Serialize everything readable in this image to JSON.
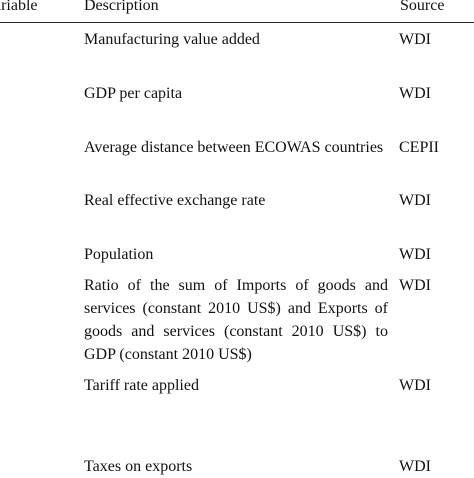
{
  "header": {
    "variable": "ariable",
    "description": "Description",
    "source": "Source"
  },
  "rows": [
    {
      "description": "Manufacturing value added",
      "source": "WDI"
    },
    {
      "description": "GDP per capita",
      "source": "WDI"
    },
    {
      "description": "Average distance between ECOWAS countries",
      "source": "CEPII"
    },
    {
      "description": "Real effective exchange rate",
      "source": "WDI"
    },
    {
      "description": "Population",
      "source": "WDI"
    },
    {
      "description": "Ratio of the sum of Imports of goods and services (constant 2010 US$) and Exports of goods and services (constant 2010 US$) to GDP (constant 2010 US$)",
      "source": "WDI"
    },
    {
      "description": "Tariff rate applied",
      "source": "WDI"
    },
    {
      "description": "Taxes on exports",
      "source": "WDI"
    }
  ]
}
